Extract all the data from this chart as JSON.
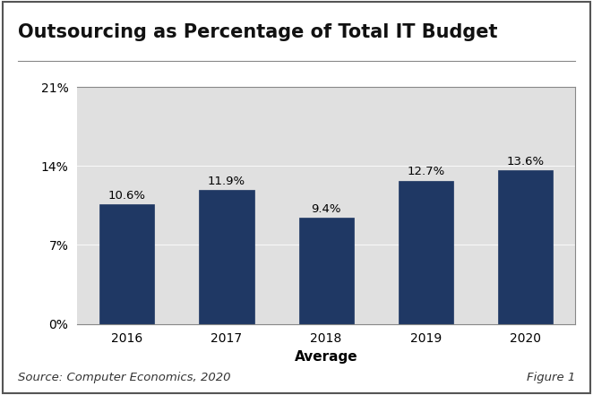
{
  "title": "Outsourcing as Percentage of Total IT Budget",
  "categories": [
    "2016",
    "2017",
    "2018",
    "2019",
    "2020"
  ],
  "values": [
    10.6,
    11.9,
    9.4,
    12.7,
    13.6
  ],
  "labels": [
    "10.6%",
    "11.9%",
    "9.4%",
    "12.7%",
    "13.6%"
  ],
  "bar_color": "#1F3864",
  "bar_edge_color": "#1F3864",
  "plot_bg_color": "#E0E0E0",
  "fig_bg_color": "#FFFFFF",
  "xlabel": "Average",
  "ylim": [
    0,
    21
  ],
  "yticks": [
    0,
    7,
    14,
    21
  ],
  "ytick_labels": [
    "0%",
    "7%",
    "14%",
    "21%"
  ],
  "title_fontsize": 15,
  "label_fontsize": 9.5,
  "tick_fontsize": 10,
  "xlabel_fontsize": 11,
  "source_text": "Source: Computer Economics, 2020",
  "figure_text": "Figure 1",
  "footer_fontsize": 9.5,
  "border_color": "#888888"
}
